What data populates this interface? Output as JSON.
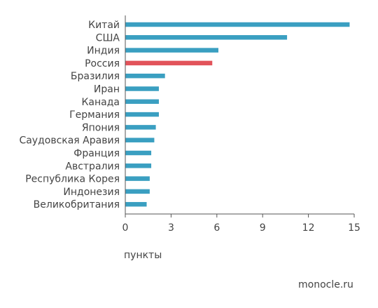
{
  "chart_data": {
    "type": "bar",
    "orientation": "horizontal",
    "categories": [
      "Китай",
      "США",
      "Индия",
      "Россия",
      "Бразилия",
      "Иран",
      "Канада",
      "Германия",
      "Япония",
      "Саудовская Аравия",
      "Франция",
      "Австралия",
      "Республика Корея",
      "Индонезия",
      "Великобритания"
    ],
    "values": [
      14.7,
      10.6,
      6.1,
      5.7,
      2.6,
      2.2,
      2.2,
      2.2,
      2.0,
      1.9,
      1.7,
      1.7,
      1.6,
      1.6,
      1.4
    ],
    "highlight": "Россия",
    "xlim": [
      0,
      15
    ],
    "xticks": [
      0,
      3,
      6,
      9,
      12,
      15
    ],
    "xlabel": "пункты",
    "ylabel": "",
    "grid": false,
    "colors": {
      "bar": "#3a9fc1",
      "highlight": "#e2535a",
      "axis": "#555555"
    }
  },
  "footer": {
    "source": "monocle.ru"
  }
}
